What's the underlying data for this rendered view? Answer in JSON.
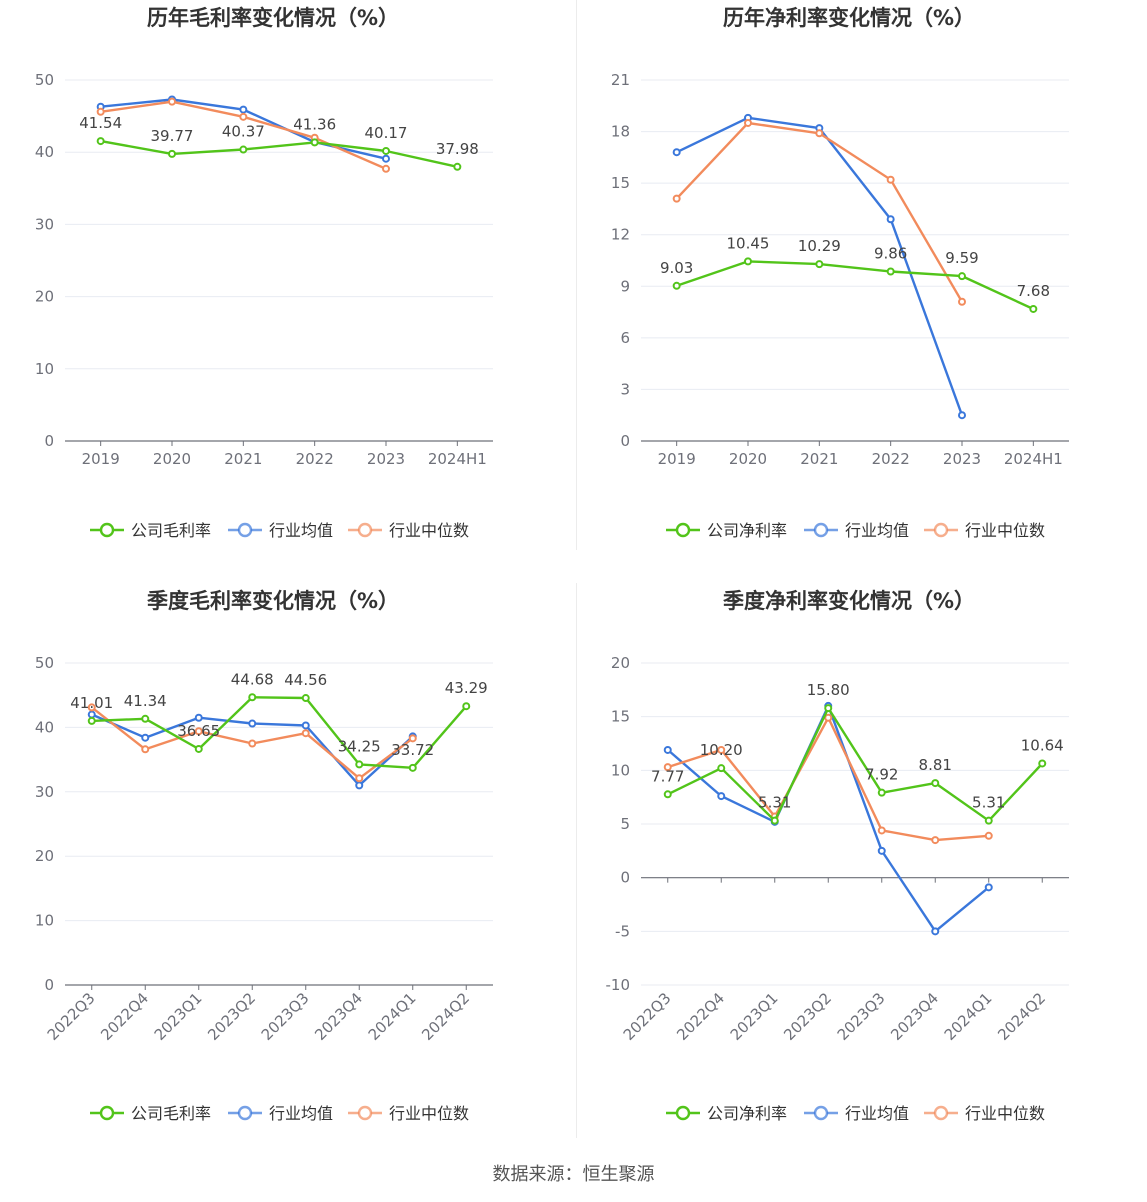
{
  "source_text": "数据来源：恒生聚源",
  "colors": {
    "company": "#52c41a",
    "industry_avg": "#3a77db",
    "industry_median": "#f28b5c"
  },
  "chart_data": [
    {
      "type": "line",
      "title": "历年毛利率变化情况（%）",
      "categories": [
        "2019",
        "2020",
        "2021",
        "2022",
        "2023",
        "2024H1"
      ],
      "y_ticks": [
        0,
        10,
        20,
        30,
        40,
        50
      ],
      "ylim": [
        0,
        50
      ],
      "grid": true,
      "legend_position": "bottom",
      "series": [
        {
          "name": "公司毛利率",
          "key": "company",
          "values": [
            41.54,
            39.77,
            40.37,
            41.36,
            40.17,
            37.98
          ],
          "labels": [
            "41.54",
            "39.77",
            "40.37",
            "41.36",
            "40.17",
            "37.98"
          ]
        },
        {
          "name": "行业均值",
          "key": "industry_avg",
          "values": [
            46.3,
            47.3,
            45.9,
            41.4,
            39.1,
            null
          ]
        },
        {
          "name": "行业中位数",
          "key": "industry_median",
          "values": [
            45.6,
            47.0,
            44.9,
            42.0,
            37.7,
            null
          ]
        }
      ]
    },
    {
      "type": "line",
      "title": "历年净利率变化情况（%）",
      "categories": [
        "2019",
        "2020",
        "2021",
        "2022",
        "2023",
        "2024H1"
      ],
      "y_ticks": [
        0,
        3,
        6,
        9,
        12,
        15,
        18,
        21
      ],
      "ylim": [
        0,
        21
      ],
      "grid": true,
      "legend_position": "bottom",
      "series": [
        {
          "name": "公司净利率",
          "key": "company",
          "values": [
            9.03,
            10.45,
            10.29,
            9.86,
            9.59,
            7.68
          ],
          "labels": [
            "9.03",
            "10.45",
            "10.29",
            "9.86",
            "9.59",
            "7.68"
          ]
        },
        {
          "name": "行业均值",
          "key": "industry_avg",
          "values": [
            16.8,
            18.8,
            18.2,
            12.9,
            1.5,
            null
          ]
        },
        {
          "name": "行业中位数",
          "key": "industry_median",
          "values": [
            14.1,
            18.5,
            17.9,
            15.2,
            8.1,
            null
          ]
        }
      ]
    },
    {
      "type": "line",
      "title": "季度毛利率变化情况（%）",
      "categories": [
        "2022Q3",
        "2022Q4",
        "2023Q1",
        "2023Q2",
        "2023Q3",
        "2023Q4",
        "2024Q1",
        "2024Q2"
      ],
      "y_ticks": [
        0,
        10,
        20,
        30,
        40,
        50
      ],
      "ylim": [
        0,
        50
      ],
      "grid": true,
      "legend_position": "bottom",
      "series": [
        {
          "name": "公司毛利率",
          "key": "company",
          "values": [
            41.01,
            41.34,
            36.65,
            44.68,
            44.56,
            34.25,
            33.72,
            43.29
          ],
          "labels": [
            "41.01",
            "41.34",
            "36.65",
            "44.68",
            "44.56",
            "34.25",
            "33.72",
            "43.29"
          ]
        },
        {
          "name": "行业均值",
          "key": "industry_avg",
          "values": [
            42.0,
            38.4,
            41.5,
            40.6,
            40.3,
            31.0,
            38.6,
            null
          ]
        },
        {
          "name": "行业中位数",
          "key": "industry_median",
          "values": [
            43.1,
            36.6,
            39.4,
            37.5,
            39.1,
            32.1,
            38.3,
            null
          ]
        }
      ]
    },
    {
      "type": "line",
      "title": "季度净利率变化情况（%）",
      "categories": [
        "2022Q3",
        "2022Q4",
        "2023Q1",
        "2023Q2",
        "2023Q3",
        "2023Q4",
        "2024Q1",
        "2024Q2"
      ],
      "y_ticks": [
        -10,
        -5,
        0,
        5,
        10,
        15,
        20
      ],
      "ylim": [
        -10,
        20
      ],
      "grid": true,
      "legend_position": "bottom",
      "series": [
        {
          "name": "公司净利率",
          "key": "company",
          "values": [
            7.77,
            10.2,
            5.31,
            15.8,
            7.92,
            8.81,
            5.31,
            10.64
          ],
          "labels": [
            "7.77",
            "10.20",
            "5.31",
            "15.80",
            "7.92",
            "8.81",
            "5.31",
            "10.64"
          ]
        },
        {
          "name": "行业均值",
          "key": "industry_avg",
          "values": [
            11.9,
            7.6,
            5.2,
            16.0,
            2.5,
            -5.0,
            -0.9,
            null
          ]
        },
        {
          "name": "行业中位数",
          "key": "industry_median",
          "values": [
            10.3,
            11.9,
            5.7,
            14.9,
            4.4,
            3.5,
            3.9,
            null
          ]
        }
      ]
    }
  ]
}
